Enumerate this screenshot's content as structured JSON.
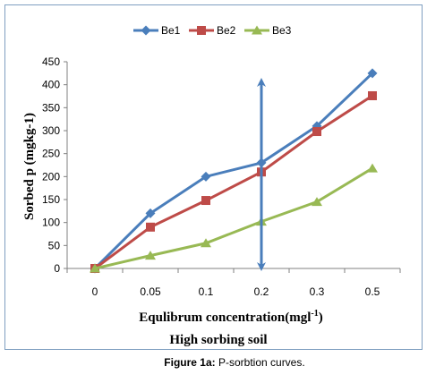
{
  "chart_data": {
    "type": "line",
    "categories": [
      "0",
      "0.05",
      "0.1",
      "0.2",
      "0.3",
      "0.5"
    ],
    "series": [
      {
        "name": "Be1",
        "values": [
          0,
          120,
          200,
          230,
          310,
          425
        ],
        "color": "#4a7ebb",
        "marker": "diamond"
      },
      {
        "name": "Be2",
        "values": [
          0,
          90,
          148,
          210,
          298,
          376
        ],
        "color": "#be4b48",
        "marker": "square"
      },
      {
        "name": "Be3",
        "values": [
          0,
          28,
          55,
          102,
          145,
          218
        ],
        "color": "#98b954",
        "marker": "triangle"
      }
    ],
    "ylabel": "Sorbed p (mgkg-1)",
    "xlabel": "Equlibrum concentration(mgl",
    "xlabel_sup": "-1",
    "xlabel_end": ")",
    "subtitle": "High sorbing soil",
    "ylim": [
      0,
      450
    ],
    "yticks": [
      0,
      50,
      100,
      150,
      200,
      250,
      300,
      350,
      400,
      450
    ],
    "legend_position": "top",
    "annotation": {
      "type": "double-arrow",
      "at_category": "0.2",
      "color": "#4a7ebb"
    }
  },
  "caption": {
    "label": "Figure 1a:",
    "text": " P-sorbtion curves."
  }
}
